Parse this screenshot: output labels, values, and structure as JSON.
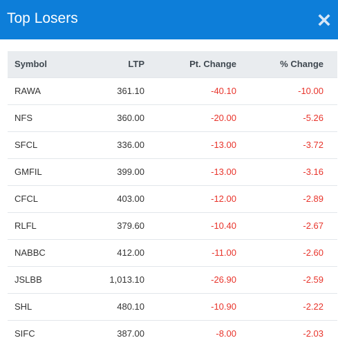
{
  "modal": {
    "title": "Top Losers",
    "close_icon": "close-icon",
    "header_color": "#0d7ed9"
  },
  "table": {
    "headers": {
      "symbol": "Symbol",
      "ltp": "LTP",
      "pt_change": "Pt. Change",
      "pct_change": "% Change"
    },
    "negative_color": "#e8332a",
    "rows": [
      {
        "symbol": "RAWA",
        "ltp": "361.10",
        "pt_change": "-40.10",
        "pct_change": "-10.00"
      },
      {
        "symbol": "NFS",
        "ltp": "360.00",
        "pt_change": "-20.00",
        "pct_change": "-5.26"
      },
      {
        "symbol": "SFCL",
        "ltp": "336.00",
        "pt_change": "-13.00",
        "pct_change": "-3.72"
      },
      {
        "symbol": "GMFIL",
        "ltp": "399.00",
        "pt_change": "-13.00",
        "pct_change": "-3.16"
      },
      {
        "symbol": "CFCL",
        "ltp": "403.00",
        "pt_change": "-12.00",
        "pct_change": "-2.89"
      },
      {
        "symbol": "RLFL",
        "ltp": "379.60",
        "pt_change": "-10.40",
        "pct_change": "-2.67"
      },
      {
        "symbol": "NABBC",
        "ltp": "412.00",
        "pt_change": "-11.00",
        "pct_change": "-2.60"
      },
      {
        "symbol": "JSLBB",
        "ltp": "1,013.10",
        "pt_change": "-26.90",
        "pct_change": "-2.59"
      },
      {
        "symbol": "SHL",
        "ltp": "480.10",
        "pt_change": "-10.90",
        "pct_change": "-2.22"
      },
      {
        "symbol": "SIFC",
        "ltp": "387.00",
        "pt_change": "-8.00",
        "pct_change": "-2.03"
      }
    ]
  }
}
